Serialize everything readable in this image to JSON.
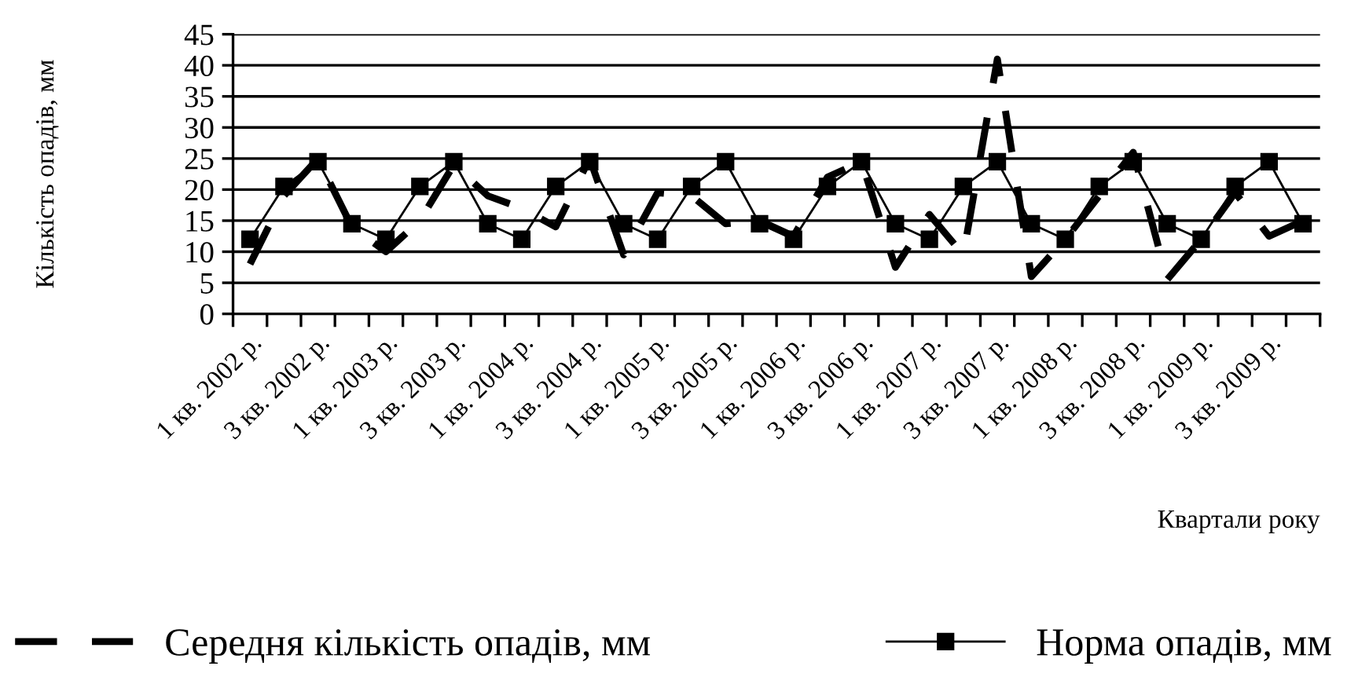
{
  "chart_data": {
    "type": "line",
    "ylabel": "Кількість опадів, мм",
    "xlabel": "Квартали року",
    "categories": [
      "1 кв. 2002 р.",
      null,
      "3 кв. 2002 р.",
      null,
      "1 кв. 2003 р.",
      null,
      "3 кв. 2003 р.",
      null,
      "1 кв. 2004 р.",
      null,
      "3 кв. 2004 р.",
      null,
      "1 кв. 2005 р.",
      null,
      "3 кв. 2005 р.",
      null,
      "1 кв. 2006 р.",
      null,
      "3 кв. 2006 р.",
      null,
      "1 кв. 2007 р.",
      null,
      "3 кв. 2007 р.",
      null,
      "1 кв. 2008 р.",
      null,
      "3 кв. 2008 р.",
      null,
      "1 кв. 2009 р.",
      null,
      "3 кв. 2009 р.",
      null
    ],
    "series": [
      {
        "name": "Середня кількість опадів, мм",
        "color": "#000000",
        "line_style": "dashed",
        "marker": "none",
        "values": [
          8,
          19,
          25,
          14,
          10,
          15,
          24,
          19,
          17,
          14,
          25,
          9.5,
          19.5,
          19,
          14.5,
          15,
          12.5,
          22,
          24.5,
          7.5,
          16,
          9.5,
          41,
          6,
          12,
          19,
          26,
          5.5,
          12,
          19.5,
          12.5,
          15
        ]
      },
      {
        "name": "Норма опадів, мм",
        "color": "#000000",
        "line_style": "solid",
        "marker": "square",
        "values": [
          12,
          20.5,
          24.5,
          14.5,
          12,
          20.5,
          24.5,
          14.5,
          12,
          20.5,
          24.5,
          14.5,
          12,
          20.5,
          24.5,
          14.5,
          12,
          20.5,
          24.5,
          14.5,
          12,
          20.5,
          24.5,
          14.5,
          12,
          20.5,
          24.5,
          14.5,
          12,
          20.5,
          24.5,
          14.5
        ]
      }
    ],
    "ylim": [
      0,
      45
    ],
    "yticks": [
      0,
      5,
      10,
      15,
      20,
      25,
      30,
      35,
      40,
      45
    ],
    "grid": "y",
    "legend": "bottom"
  }
}
